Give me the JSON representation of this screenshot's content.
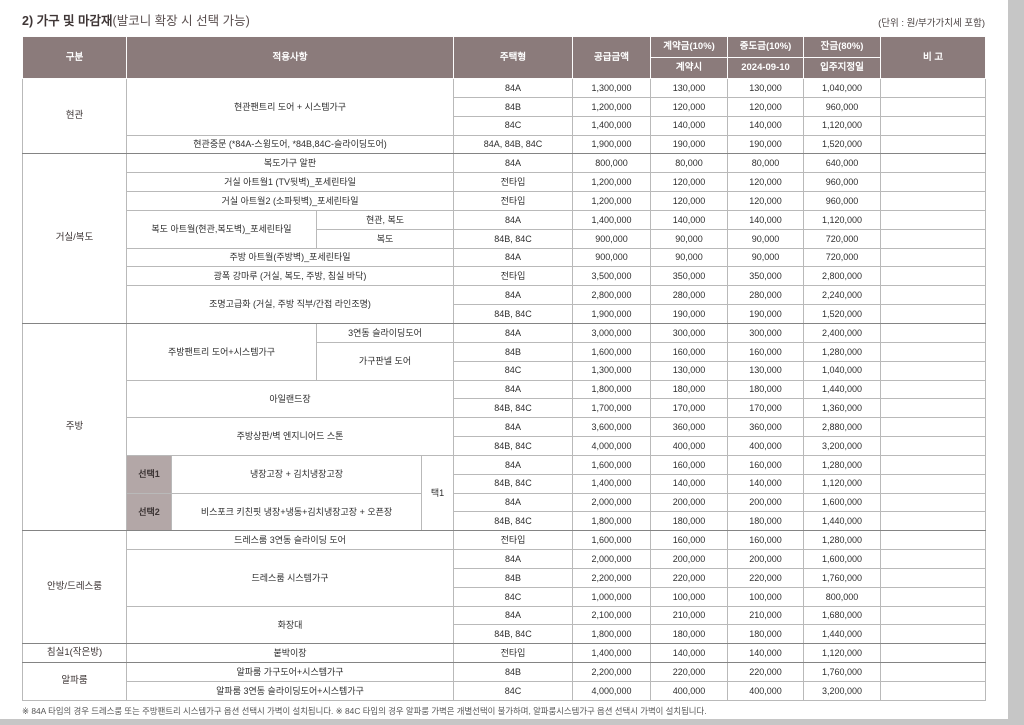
{
  "page": {
    "title_bold": "2) 가구 및 마감재",
    "title_paren": "(발코니 확장 시 선택 가능)",
    "unit_note": "(단위 : 원/부가가치세 포함)",
    "footnote": "※ 84A 타입의 경우 드레스룸 또는 주방팬트리 시스템가구 옵션 선택시 가벽이 설치됩니다.  ※ 84C 타입의 경우 알파룸 가벽은 개별선택이 불가하며, 알파룸시스템가구 옵션 선택시 가벽이 설치됩니다."
  },
  "table": {
    "colors": {
      "header_bg": "#8b7b7b",
      "header_text": "#ffffff",
      "select_bg": "#b3a7a7",
      "grid": "#b9b9b9",
      "title_text": "#3f3636"
    },
    "headers": {
      "gubun": "구분",
      "apply": "적용사항",
      "type": "주택형",
      "supply": "공급금액",
      "contract": "계약금(10%)",
      "contract_sub": "계약시",
      "interim": "중도금(10%)",
      "interim_sub": "2024-09-10",
      "balance": "잔금(80%)",
      "balance_sub": "입주지정일",
      "remark": "비 고"
    },
    "rows": [
      [
        {
          "t": "현관",
          "k": "cat",
          "r": 4,
          "b": 1
        },
        {
          "t": "현관팬트리 도어 + 시스템가구",
          "k": "item",
          "c": 4,
          "r": 3
        },
        {
          "t": "84A",
          "k": "type"
        },
        {
          "t": "1,300,000",
          "k": "num"
        },
        {
          "t": "130,000",
          "k": "num"
        },
        {
          "t": "130,000",
          "k": "num"
        },
        {
          "t": "1,040,000",
          "k": "num"
        },
        {
          "t": "",
          "k": "rem"
        }
      ],
      [
        {
          "t": "84B",
          "k": "type"
        },
        {
          "t": "1,200,000",
          "k": "num"
        },
        {
          "t": "120,000",
          "k": "num"
        },
        {
          "t": "120,000",
          "k": "num"
        },
        {
          "t": "960,000",
          "k": "num"
        },
        {
          "t": "",
          "k": "rem"
        }
      ],
      [
        {
          "t": "84C",
          "k": "type"
        },
        {
          "t": "1,400,000",
          "k": "num"
        },
        {
          "t": "140,000",
          "k": "num"
        },
        {
          "t": "140,000",
          "k": "num"
        },
        {
          "t": "1,120,000",
          "k": "num"
        },
        {
          "t": "",
          "k": "rem"
        }
      ],
      [
        {
          "t": "현관중문 (*84A-스윙도어, *84B,84C-슬라이딩도어)",
          "k": "item",
          "c": 4,
          "b": 1
        },
        {
          "t": "84A, 84B, 84C",
          "k": "type",
          "b": 1
        },
        {
          "t": "1,900,000",
          "k": "num",
          "b": 1
        },
        {
          "t": "190,000",
          "k": "num",
          "b": 1
        },
        {
          "t": "190,000",
          "k": "num",
          "b": 1
        },
        {
          "t": "1,520,000",
          "k": "num",
          "b": 1
        },
        {
          "t": "",
          "k": "rem",
          "b": 1
        }
      ],
      [
        {
          "t": "거실/복도",
          "k": "cat",
          "r": 9,
          "b": 1
        },
        {
          "t": "복도가구 알판",
          "k": "item",
          "c": 4
        },
        {
          "t": "84A",
          "k": "type"
        },
        {
          "t": "800,000",
          "k": "num"
        },
        {
          "t": "80,000",
          "k": "num"
        },
        {
          "t": "80,000",
          "k": "num"
        },
        {
          "t": "640,000",
          "k": "num"
        },
        {
          "t": "",
          "k": "rem"
        }
      ],
      [
        {
          "t": "거실 아트월1 (TV뒷벽)_포세린타일",
          "k": "item",
          "c": 4
        },
        {
          "t": "전타입",
          "k": "type"
        },
        {
          "t": "1,200,000",
          "k": "num"
        },
        {
          "t": "120,000",
          "k": "num"
        },
        {
          "t": "120,000",
          "k": "num"
        },
        {
          "t": "960,000",
          "k": "num"
        },
        {
          "t": "",
          "k": "rem"
        }
      ],
      [
        {
          "t": "거실 아트월2 (소파뒷벽)_포세린타일",
          "k": "item",
          "c": 4
        },
        {
          "t": "전타입",
          "k": "type"
        },
        {
          "t": "1,200,000",
          "k": "num"
        },
        {
          "t": "120,000",
          "k": "num"
        },
        {
          "t": "120,000",
          "k": "num"
        },
        {
          "t": "960,000",
          "k": "num"
        },
        {
          "t": "",
          "k": "rem"
        }
      ],
      [
        {
          "t": "복도 아트월(현관,복도벽)_포세린타일",
          "k": "item",
          "c": 2,
          "r": 2
        },
        {
          "t": "현관, 복도",
          "k": "sub",
          "c": 2
        },
        {
          "t": "84A",
          "k": "type"
        },
        {
          "t": "1,400,000",
          "k": "num"
        },
        {
          "t": "140,000",
          "k": "num"
        },
        {
          "t": "140,000",
          "k": "num"
        },
        {
          "t": "1,120,000",
          "k": "num"
        },
        {
          "t": "",
          "k": "rem"
        }
      ],
      [
        {
          "t": "복도",
          "k": "sub",
          "c": 2
        },
        {
          "t": "84B, 84C",
          "k": "type"
        },
        {
          "t": "900,000",
          "k": "num"
        },
        {
          "t": "90,000",
          "k": "num"
        },
        {
          "t": "90,000",
          "k": "num"
        },
        {
          "t": "720,000",
          "k": "num"
        },
        {
          "t": "",
          "k": "rem"
        }
      ],
      [
        {
          "t": "주방 아트월(주방벽)_포세린타일",
          "k": "item",
          "c": 4
        },
        {
          "t": "84A",
          "k": "type"
        },
        {
          "t": "900,000",
          "k": "num"
        },
        {
          "t": "90,000",
          "k": "num"
        },
        {
          "t": "90,000",
          "k": "num"
        },
        {
          "t": "720,000",
          "k": "num"
        },
        {
          "t": "",
          "k": "rem"
        }
      ],
      [
        {
          "t": "광폭 강마루 (거실, 복도, 주방, 침실 바닥)",
          "k": "item",
          "c": 4
        },
        {
          "t": "전타입",
          "k": "type"
        },
        {
          "t": "3,500,000",
          "k": "num"
        },
        {
          "t": "350,000",
          "k": "num"
        },
        {
          "t": "350,000",
          "k": "num"
        },
        {
          "t": "2,800,000",
          "k": "num"
        },
        {
          "t": "",
          "k": "rem"
        }
      ],
      [
        {
          "t": "조명고급화 (거실, 주방 직부/간접 라인조명)",
          "k": "item",
          "c": 4,
          "r": 2,
          "b": 1
        },
        {
          "t": "84A",
          "k": "type"
        },
        {
          "t": "2,800,000",
          "k": "num"
        },
        {
          "t": "280,000",
          "k": "num"
        },
        {
          "t": "280,000",
          "k": "num"
        },
        {
          "t": "2,240,000",
          "k": "num"
        },
        {
          "t": "",
          "k": "rem"
        }
      ],
      [
        {
          "t": "84B, 84C",
          "k": "type",
          "b": 1
        },
        {
          "t": "1,900,000",
          "k": "num",
          "b": 1
        },
        {
          "t": "190,000",
          "k": "num",
          "b": 1
        },
        {
          "t": "190,000",
          "k": "num",
          "b": 1
        },
        {
          "t": "1,520,000",
          "k": "num",
          "b": 1
        },
        {
          "t": "",
          "k": "rem",
          "b": 1
        }
      ],
      [
        {
          "t": "주방",
          "k": "cat",
          "r": 11,
          "b": 1
        },
        {
          "t": "주방팬트리 도어+시스템가구",
          "k": "item",
          "c": 2,
          "r": 3
        },
        {
          "t": "3연동 슬라이딩도어",
          "k": "sub",
          "c": 2
        },
        {
          "t": "84A",
          "k": "type"
        },
        {
          "t": "3,000,000",
          "k": "num"
        },
        {
          "t": "300,000",
          "k": "num"
        },
        {
          "t": "300,000",
          "k": "num"
        },
        {
          "t": "2,400,000",
          "k": "num"
        },
        {
          "t": "",
          "k": "rem"
        }
      ],
      [
        {
          "t": "가구판넬 도어",
          "k": "sub",
          "c": 2,
          "r": 2
        },
        {
          "t": "84B",
          "k": "type"
        },
        {
          "t": "1,600,000",
          "k": "num"
        },
        {
          "t": "160,000",
          "k": "num"
        },
        {
          "t": "160,000",
          "k": "num"
        },
        {
          "t": "1,280,000",
          "k": "num"
        },
        {
          "t": "",
          "k": "rem"
        }
      ],
      [
        {
          "t": "84C",
          "k": "type"
        },
        {
          "t": "1,300,000",
          "k": "num"
        },
        {
          "t": "130,000",
          "k": "num"
        },
        {
          "t": "130,000",
          "k": "num"
        },
        {
          "t": "1,040,000",
          "k": "num"
        },
        {
          "t": "",
          "k": "rem"
        }
      ],
      [
        {
          "t": "아일랜드장",
          "k": "item",
          "c": 4,
          "r": 2
        },
        {
          "t": "84A",
          "k": "type"
        },
        {
          "t": "1,800,000",
          "k": "num"
        },
        {
          "t": "180,000",
          "k": "num"
        },
        {
          "t": "180,000",
          "k": "num"
        },
        {
          "t": "1,440,000",
          "k": "num"
        },
        {
          "t": "",
          "k": "rem"
        }
      ],
      [
        {
          "t": "84B, 84C",
          "k": "type"
        },
        {
          "t": "1,700,000",
          "k": "num"
        },
        {
          "t": "170,000",
          "k": "num"
        },
        {
          "t": "170,000",
          "k": "num"
        },
        {
          "t": "1,360,000",
          "k": "num"
        },
        {
          "t": "",
          "k": "rem"
        }
      ],
      [
        {
          "t": "주방상판/벽 엔지니어드 스톤",
          "k": "item",
          "c": 4,
          "r": 2
        },
        {
          "t": "84A",
          "k": "type"
        },
        {
          "t": "3,600,000",
          "k": "num"
        },
        {
          "t": "360,000",
          "k": "num"
        },
        {
          "t": "360,000",
          "k": "num"
        },
        {
          "t": "2,880,000",
          "k": "num"
        },
        {
          "t": "",
          "k": "rem"
        }
      ],
      [
        {
          "t": "84B, 84C",
          "k": "type"
        },
        {
          "t": "4,000,000",
          "k": "num"
        },
        {
          "t": "400,000",
          "k": "num"
        },
        {
          "t": "400,000",
          "k": "num"
        },
        {
          "t": "3,200,000",
          "k": "num"
        },
        {
          "t": "",
          "k": "rem"
        }
      ],
      [
        {
          "t": "선택1",
          "k": "sel",
          "r": 2
        },
        {
          "t": "냉장고장 + 김치냉장고장",
          "k": "item",
          "c": 2,
          "r": 2
        },
        {
          "t": "택1",
          "k": "taek",
          "r": 4,
          "b": 1
        },
        {
          "t": "84A",
          "k": "type"
        },
        {
          "t": "1,600,000",
          "k": "num"
        },
        {
          "t": "160,000",
          "k": "num"
        },
        {
          "t": "160,000",
          "k": "num"
        },
        {
          "t": "1,280,000",
          "k": "num"
        },
        {
          "t": "",
          "k": "rem"
        }
      ],
      [
        {
          "t": "84B, 84C",
          "k": "type"
        },
        {
          "t": "1,400,000",
          "k": "num"
        },
        {
          "t": "140,000",
          "k": "num"
        },
        {
          "t": "140,000",
          "k": "num"
        },
        {
          "t": "1,120,000",
          "k": "num"
        },
        {
          "t": "",
          "k": "rem"
        }
      ],
      [
        {
          "t": "선택2",
          "k": "sel",
          "r": 2,
          "b": 1
        },
        {
          "t": "비스포크 키친핏 냉장+냉동+김치냉장고장 + 오픈장",
          "k": "item",
          "c": 2,
          "r": 2,
          "b": 1
        },
        {
          "t": "84A",
          "k": "type"
        },
        {
          "t": "2,000,000",
          "k": "num"
        },
        {
          "t": "200,000",
          "k": "num"
        },
        {
          "t": "200,000",
          "k": "num"
        },
        {
          "t": "1,600,000",
          "k": "num"
        },
        {
          "t": "",
          "k": "rem"
        }
      ],
      [
        {
          "t": "84B, 84C",
          "k": "type",
          "b": 1
        },
        {
          "t": "1,800,000",
          "k": "num",
          "b": 1
        },
        {
          "t": "180,000",
          "k": "num",
          "b": 1
        },
        {
          "t": "180,000",
          "k": "num",
          "b": 1
        },
        {
          "t": "1,440,000",
          "k": "num",
          "b": 1
        },
        {
          "t": "",
          "k": "rem",
          "b": 1
        }
      ],
      [
        {
          "t": "안방/드레스룸",
          "k": "cat",
          "r": 6,
          "b": 1
        },
        {
          "t": "드레스룸 3연동 슬라이딩 도어",
          "k": "item",
          "c": 4
        },
        {
          "t": "전타입",
          "k": "type"
        },
        {
          "t": "1,600,000",
          "k": "num"
        },
        {
          "t": "160,000",
          "k": "num"
        },
        {
          "t": "160,000",
          "k": "num"
        },
        {
          "t": "1,280,000",
          "k": "num"
        },
        {
          "t": "",
          "k": "rem"
        }
      ],
      [
        {
          "t": "드레스룸 시스템가구",
          "k": "item",
          "c": 4,
          "r": 3
        },
        {
          "t": "84A",
          "k": "type"
        },
        {
          "t": "2,000,000",
          "k": "num"
        },
        {
          "t": "200,000",
          "k": "num"
        },
        {
          "t": "200,000",
          "k": "num"
        },
        {
          "t": "1,600,000",
          "k": "num"
        },
        {
          "t": "",
          "k": "rem"
        }
      ],
      [
        {
          "t": "84B",
          "k": "type"
        },
        {
          "t": "2,200,000",
          "k": "num"
        },
        {
          "t": "220,000",
          "k": "num"
        },
        {
          "t": "220,000",
          "k": "num"
        },
        {
          "t": "1,760,000",
          "k": "num"
        },
        {
          "t": "",
          "k": "rem"
        }
      ],
      [
        {
          "t": "84C",
          "k": "type"
        },
        {
          "t": "1,000,000",
          "k": "num"
        },
        {
          "t": "100,000",
          "k": "num"
        },
        {
          "t": "100,000",
          "k": "num"
        },
        {
          "t": "800,000",
          "k": "num"
        },
        {
          "t": "",
          "k": "rem"
        }
      ],
      [
        {
          "t": "화장대",
          "k": "item",
          "c": 4,
          "r": 2,
          "b": 1
        },
        {
          "t": "84A",
          "k": "type"
        },
        {
          "t": "2,100,000",
          "k": "num"
        },
        {
          "t": "210,000",
          "k": "num"
        },
        {
          "t": "210,000",
          "k": "num"
        },
        {
          "t": "1,680,000",
          "k": "num"
        },
        {
          "t": "",
          "k": "rem"
        }
      ],
      [
        {
          "t": "84B, 84C",
          "k": "type",
          "b": 1
        },
        {
          "t": "1,800,000",
          "k": "num",
          "b": 1
        },
        {
          "t": "180,000",
          "k": "num",
          "b": 1
        },
        {
          "t": "180,000",
          "k": "num",
          "b": 1
        },
        {
          "t": "1,440,000",
          "k": "num",
          "b": 1
        },
        {
          "t": "",
          "k": "rem",
          "b": 1
        }
      ],
      [
        {
          "t": "침실1(작은방)",
          "k": "cat",
          "b": 1
        },
        {
          "t": "붙박이장",
          "k": "item",
          "c": 4,
          "b": 1
        },
        {
          "t": "전타입",
          "k": "type",
          "b": 1
        },
        {
          "t": "1,400,000",
          "k": "num",
          "b": 1
        },
        {
          "t": "140,000",
          "k": "num",
          "b": 1
        },
        {
          "t": "140,000",
          "k": "num",
          "b": 1
        },
        {
          "t": "1,120,000",
          "k": "num",
          "b": 1
        },
        {
          "t": "",
          "k": "rem",
          "b": 1
        }
      ],
      [
        {
          "t": "알파룸",
          "k": "cat",
          "r": 2
        },
        {
          "t": "알파룸 가구도어+시스템가구",
          "k": "item",
          "c": 4
        },
        {
          "t": "84B",
          "k": "type"
        },
        {
          "t": "2,200,000",
          "k": "num"
        },
        {
          "t": "220,000",
          "k": "num"
        },
        {
          "t": "220,000",
          "k": "num"
        },
        {
          "t": "1,760,000",
          "k": "num"
        },
        {
          "t": "",
          "k": "rem"
        }
      ],
      [
        {
          "t": "알파룸 3연동 슬라이딩도어+시스템가구",
          "k": "item",
          "c": 4
        },
        {
          "t": "84C",
          "k": "type"
        },
        {
          "t": "4,000,000",
          "k": "num"
        },
        {
          "t": "400,000",
          "k": "num"
        },
        {
          "t": "400,000",
          "k": "num"
        },
        {
          "t": "3,200,000",
          "k": "num"
        },
        {
          "t": "",
          "k": "rem"
        }
      ]
    ]
  }
}
